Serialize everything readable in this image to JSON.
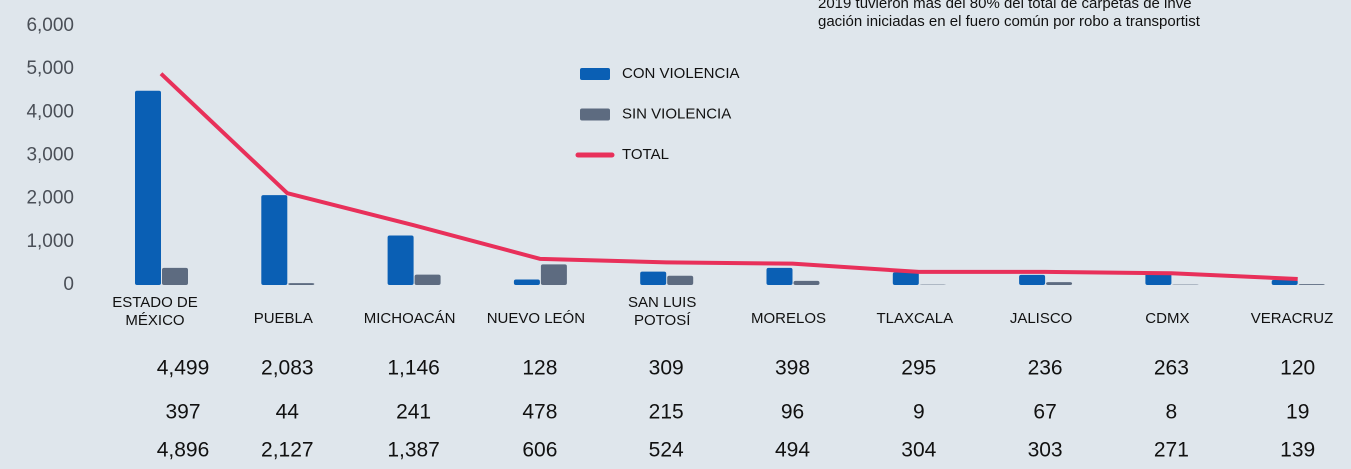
{
  "chart_data": {
    "type": "bar",
    "annotations": [
      "2019 tuvieron más del 80% del total de carpetas de inve",
      "gación iniciadas en el fuero común por robo a transportist"
    ],
    "categories": [
      "ESTADO DE MÉXICO",
      "PUEBLA",
      "MICHOACÁN",
      "NUEVO LEÓN",
      "SAN LUIS POTOSÍ",
      "MORELOS",
      "TLAXCALA",
      "JALISCO",
      "CDMX",
      "VERACRUZ"
    ],
    "series": [
      {
        "name": "CON VIOLENCIA",
        "color": "#0a5fb4",
        "type": "bar",
        "values": [
          4499,
          2083,
          1146,
          128,
          309,
          398,
          295,
          236,
          263,
          120
        ],
        "value_labels": [
          "4,499",
          "2,083",
          "1,146",
          "128",
          "309",
          "398",
          "295",
          "236",
          "263",
          "120"
        ]
      },
      {
        "name": "SIN VIOLENCIA",
        "color": "#5d6b80",
        "type": "bar",
        "values": [
          397,
          44,
          241,
          478,
          215,
          96,
          9,
          67,
          8,
          19
        ],
        "value_labels": [
          "397",
          "44",
          "241",
          "478",
          "215",
          "96",
          "9",
          "67",
          "8",
          "19"
        ]
      },
      {
        "name": "TOTAL",
        "color": "#e8305a",
        "type": "line",
        "values": [
          4896,
          2127,
          1387,
          606,
          524,
          494,
          304,
          303,
          271,
          139
        ],
        "value_labels": [
          "4,896",
          "2,127",
          "1,387",
          "606",
          "524",
          "494",
          "304",
          "303",
          "271",
          "139"
        ]
      }
    ],
    "ylim": [
      0,
      6000
    ],
    "yticks": [
      0,
      {
        "value": 1000,
        "label": "1,000"
      },
      {
        "value": 2000,
        "label": "2,000"
      },
      {
        "value": 3000,
        "label": "3,000"
      },
      {
        "value": 4000,
        "label": "4,000"
      },
      {
        "value": 5000,
        "label": "5,000"
      },
      {
        "value": 6000,
        "label": "6,000"
      }
    ],
    "grid": false
  }
}
